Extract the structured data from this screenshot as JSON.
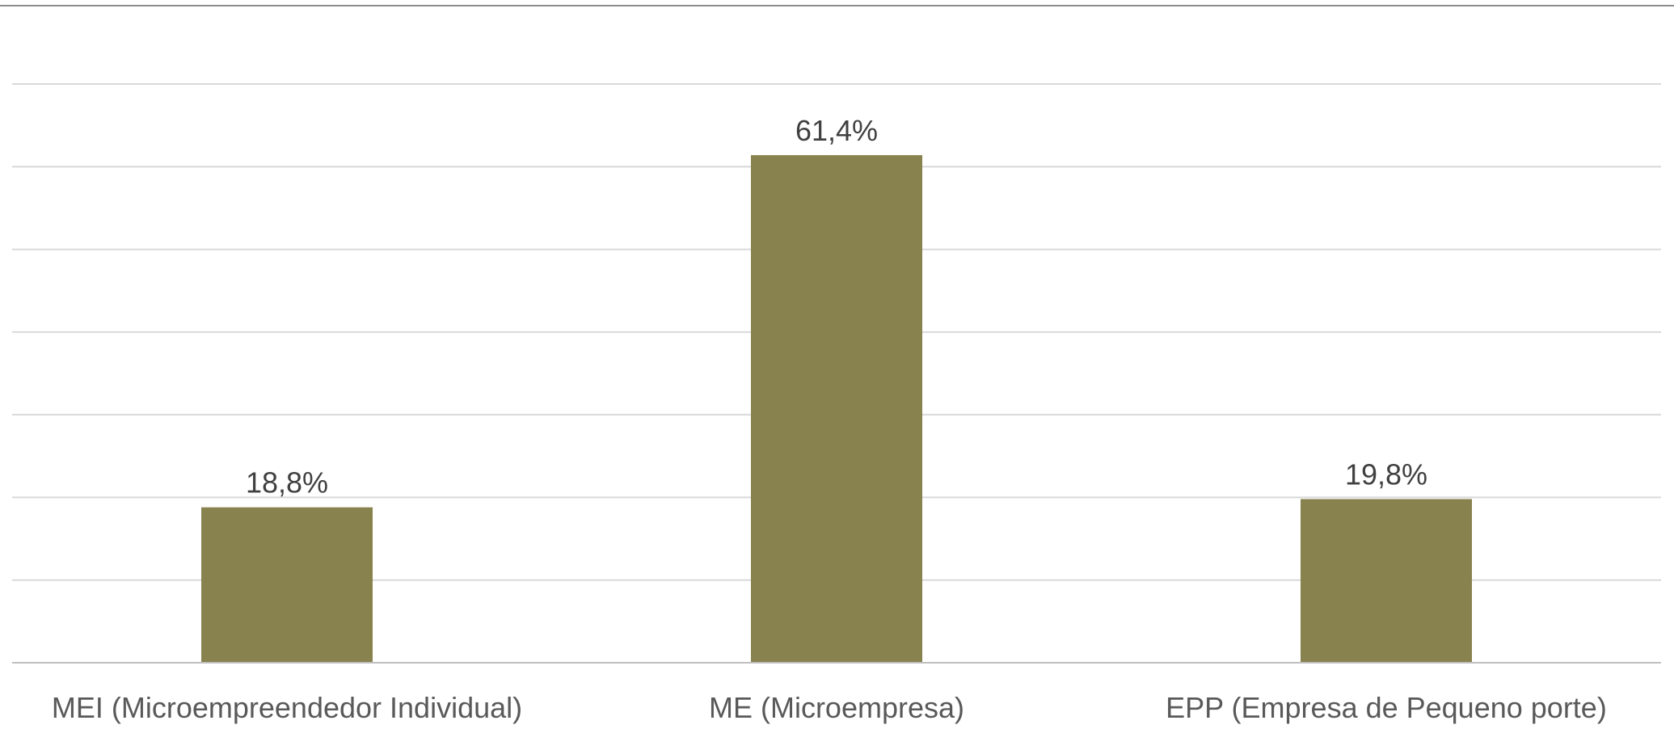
{
  "chart_data": {
    "type": "bar",
    "title": "",
    "xlabel": "",
    "ylabel": "",
    "categories": [
      "MEI (Microempreendedor Individual)",
      "ME (Microempresa)",
      "EPP (Empresa de Pequeno porte)"
    ],
    "values": [
      18.8,
      61.4,
      19.8
    ],
    "data_labels": [
      "18,8%",
      "61,4%",
      "19,8%"
    ],
    "ylim": [
      0,
      70
    ],
    "grid": true,
    "gridlines": [
      0,
      10,
      20,
      30,
      40,
      50,
      60,
      70
    ],
    "legend": "none",
    "colors": {
      "bar": "#88824f",
      "grid": "#d9d9d9",
      "axis": "#bfbfbf",
      "frame_top": "#8c8c8c",
      "text": "#404040",
      "category_text": "#595959"
    }
  }
}
